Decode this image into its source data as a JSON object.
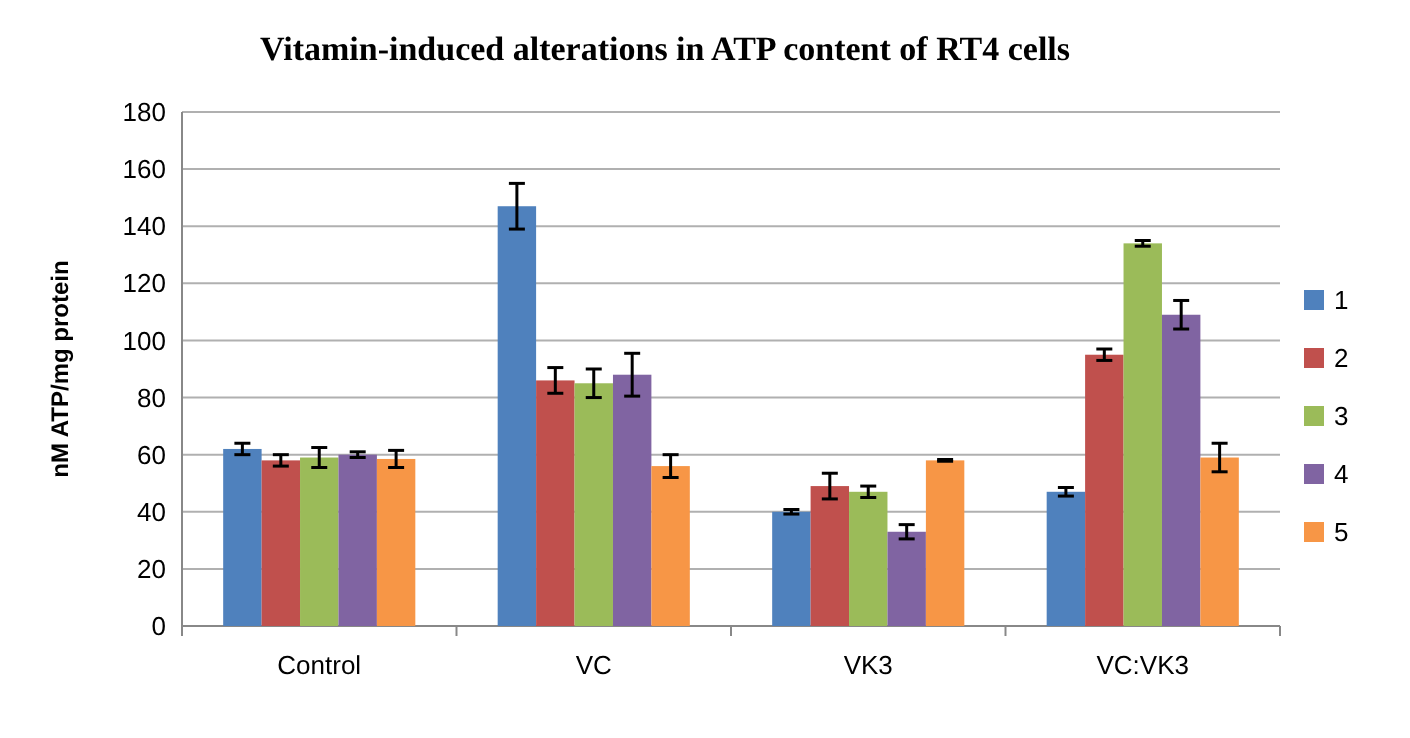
{
  "chart_data": {
    "type": "bar",
    "title": "Vitamin-induced alterations in ATP content of RT4 cells",
    "ylabel": "nM ATP/mg protein",
    "categories": [
      "Control",
      "VC",
      "VK3",
      "VC:VK3"
    ],
    "series": [
      {
        "name": "1",
        "color": "#4f81bd",
        "values": [
          62,
          147,
          40,
          47
        ],
        "errors": [
          2,
          8,
          0.8,
          1.5
        ]
      },
      {
        "name": "2",
        "color": "#c0504d",
        "values": [
          58,
          86,
          49,
          95
        ],
        "errors": [
          2,
          4.5,
          4.5,
          2
        ]
      },
      {
        "name": "3",
        "color": "#9bbb59",
        "values": [
          59,
          85,
          47,
          134
        ],
        "errors": [
          3.5,
          5,
          2,
          1
        ]
      },
      {
        "name": "4",
        "color": "#8064a2",
        "values": [
          60,
          88,
          33,
          109
        ],
        "errors": [
          1,
          7.5,
          2.5,
          5
        ]
      },
      {
        "name": "5",
        "color": "#f79646",
        "values": [
          58.5,
          56,
          58,
          59
        ],
        "errors": [
          3,
          4,
          0.3,
          5
        ]
      }
    ],
    "ylim": [
      0,
      180
    ],
    "yticks": [
      0,
      20,
      40,
      60,
      80,
      100,
      120,
      140,
      160,
      180
    ],
    "grid": "y",
    "legend": "right"
  }
}
